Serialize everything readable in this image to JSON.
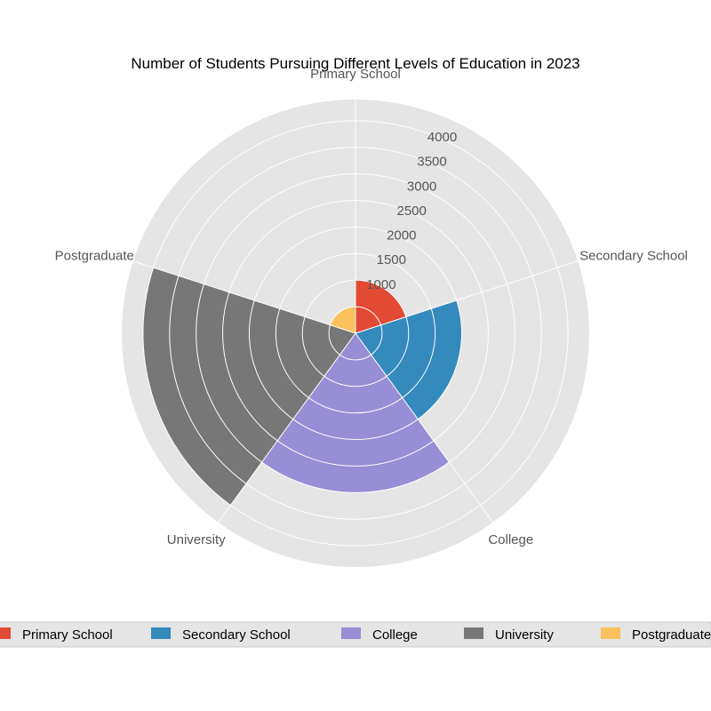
{
  "chart_data": {
    "type": "rose",
    "title": "Number of Students Pursuing Different Levels of Education in 2023",
    "categories": [
      "Primary School",
      "Secondary School",
      "College",
      "University",
      "Postgraduate"
    ],
    "values": [
      1000,
      2000,
      3000,
      4000,
      500
    ],
    "radial_ticks": [
      "1000",
      "1500",
      "2000",
      "2500",
      "3000",
      "3500",
      "4000"
    ],
    "radial_tick_values": [
      1000,
      1500,
      2000,
      2500,
      3000,
      3500,
      4000
    ],
    "rmax": 4400,
    "grid": true,
    "legend_position": "bottom",
    "colors": [
      "#E24A33",
      "#348ABD",
      "#988ED5",
      "#777777",
      "#FBC15E"
    ],
    "background_color": "#E5E5E5",
    "grid_color": "#FFFFFF"
  }
}
